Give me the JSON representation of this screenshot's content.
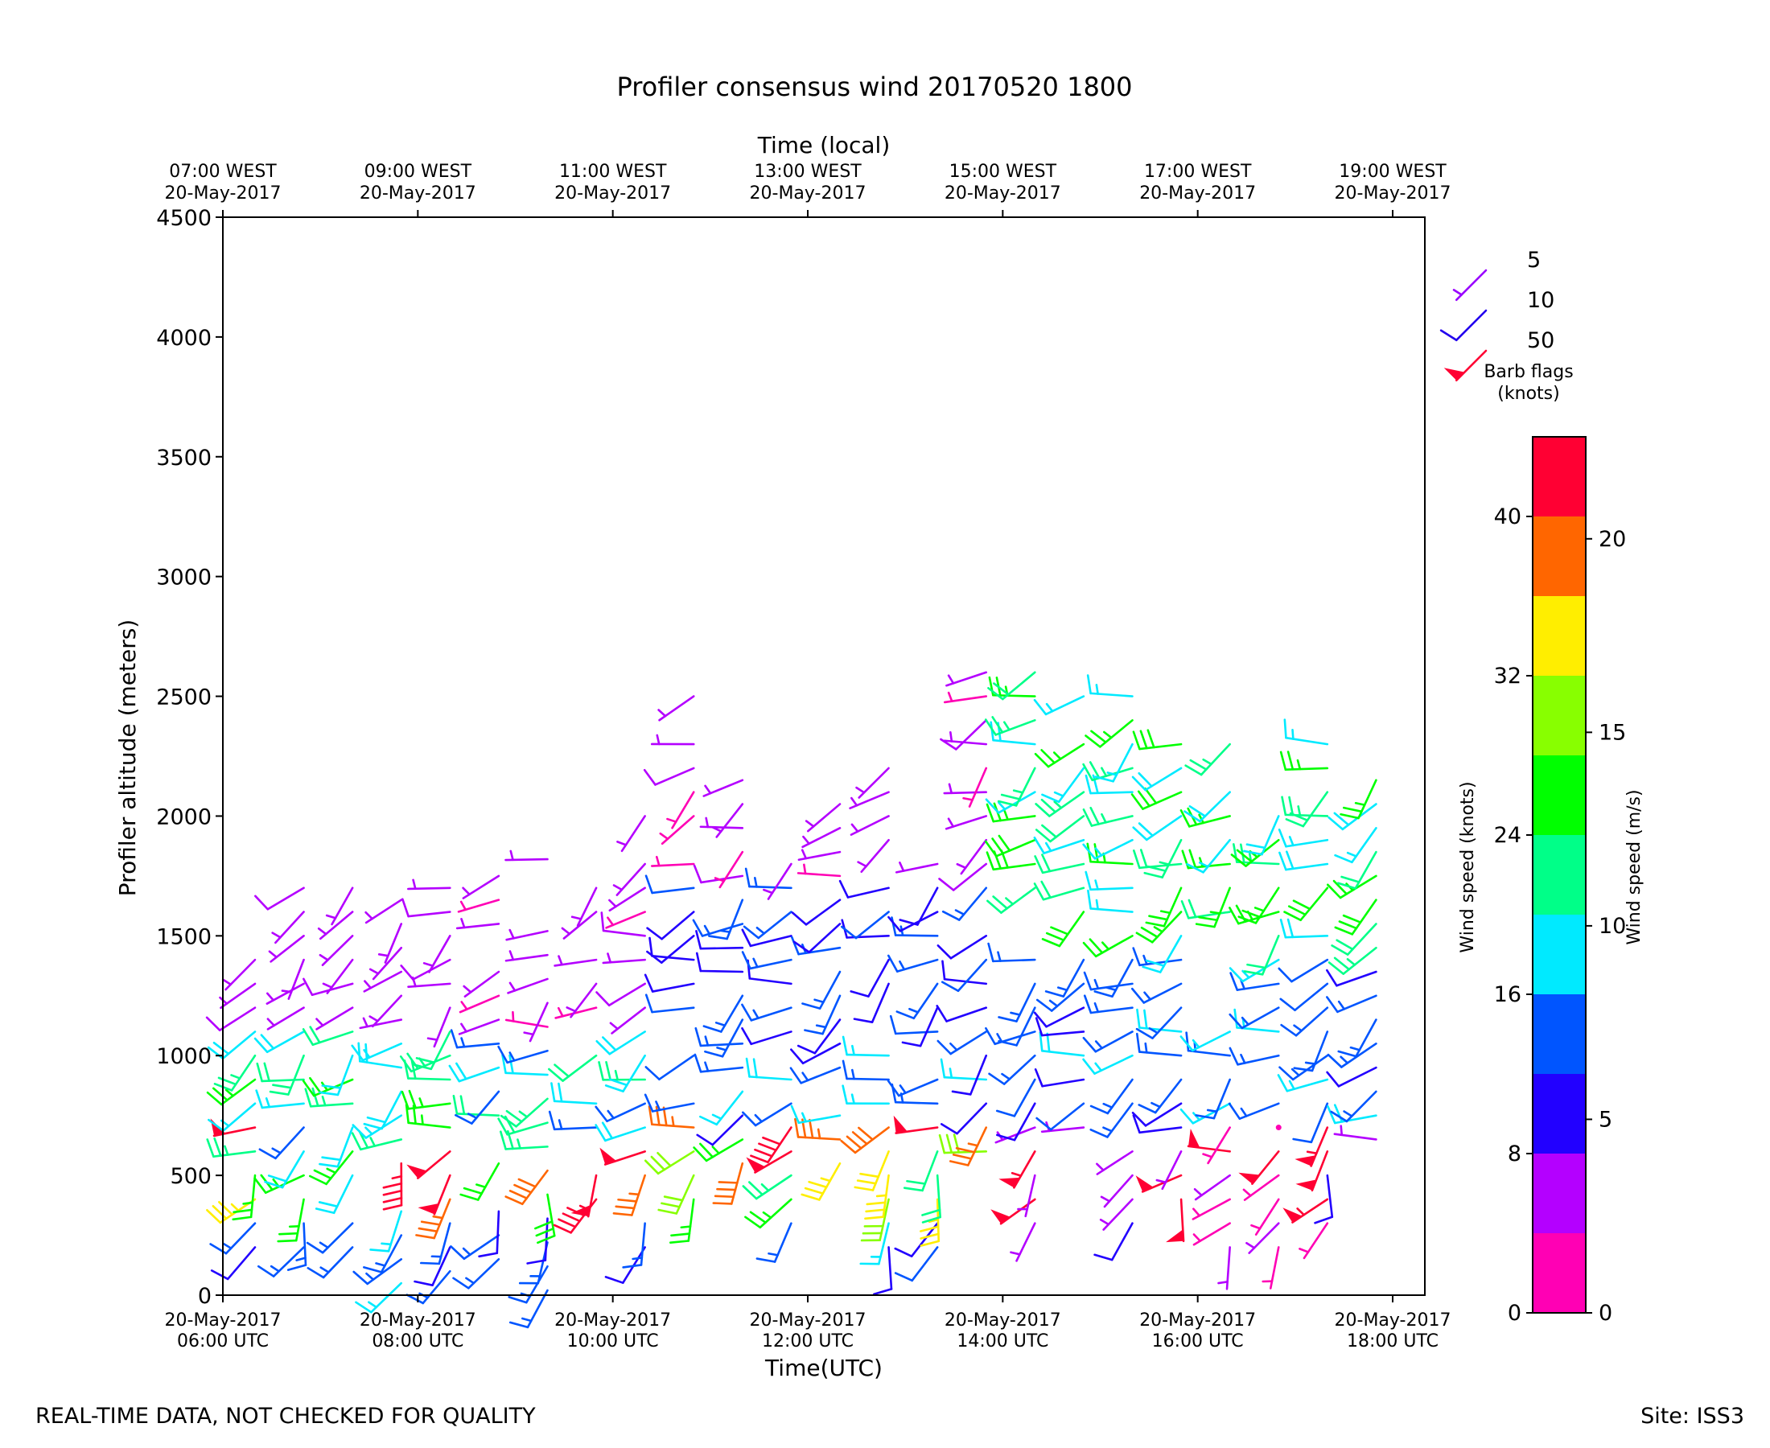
{
  "chart_data": {
    "type": "wind-barb",
    "title": "Profiler consensus wind 20170520 1800",
    "xlabel": "Time(UTC)",
    "xlabel_top": "Time (local)",
    "ylabel": "Profiler altitude (meters)",
    "ylim": [
      0,
      4500
    ],
    "yticks": [
      0,
      500,
      1000,
      1500,
      2000,
      2500,
      3000,
      3500,
      4000,
      4500
    ],
    "xlim_hours_utc": [
      6,
      18.33
    ],
    "xticks_bottom": [
      {
        "hour": 6,
        "line1": "20-May-2017",
        "line2": "06:00 UTC"
      },
      {
        "hour": 8,
        "line1": "20-May-2017",
        "line2": "08:00 UTC"
      },
      {
        "hour": 10,
        "line1": "20-May-2017",
        "line2": "10:00 UTC"
      },
      {
        "hour": 12,
        "line1": "20-May-2017",
        "line2": "12:00 UTC"
      },
      {
        "hour": 14,
        "line1": "20-May-2017",
        "line2": "14:00 UTC"
      },
      {
        "hour": 16,
        "line1": "20-May-2017",
        "line2": "16:00 UTC"
      },
      {
        "hour": 18,
        "line1": "20-May-2017",
        "line2": "18:00 UTC"
      }
    ],
    "xticks_top": [
      {
        "hour": 6,
        "line1": "07:00 WEST",
        "line2": "20-May-2017"
      },
      {
        "hour": 8,
        "line1": "09:00 WEST",
        "line2": "20-May-2017"
      },
      {
        "hour": 10,
        "line1": "11:00 WEST",
        "line2": "20-May-2017"
      },
      {
        "hour": 12,
        "line1": "13:00 WEST",
        "line2": "20-May-2017"
      },
      {
        "hour": 14,
        "line1": "15:00 WEST",
        "line2": "20-May-2017"
      },
      {
        "hour": 16,
        "line1": "17:00 WEST",
        "line2": "20-May-2017"
      },
      {
        "hour": 18,
        "line1": "19:00 WEST",
        "line2": "20-May-2017"
      }
    ],
    "barb_legend": {
      "title_line1": "Barb flags",
      "title_line2": "(knots)",
      "entries": [
        {
          "label": "5",
          "speed": 5,
          "color": "#9900ff"
        },
        {
          "label": "10",
          "speed": 10,
          "color": "#2200ee"
        },
        {
          "label": "50",
          "speed": 50,
          "color": "#ff0033"
        }
      ]
    },
    "colorbar": {
      "label_knots": "Wind speed (knots)",
      "label_ms": "Wind speed (m/s)",
      "bounds_knots": [
        0,
        4,
        8,
        12,
        16,
        20,
        24,
        28,
        32,
        36,
        40,
        44
      ],
      "colors": [
        "#ff00b4",
        "#b400ff",
        "#2200ff",
        "#0055ff",
        "#00eaff",
        "#00ff88",
        "#00ff00",
        "#88ff00",
        "#ffee00",
        "#ff6600",
        "#ff0033"
      ],
      "ticks_knots": [
        0,
        8,
        16,
        24,
        32,
        40
      ],
      "ticks_ms": [
        0,
        5,
        10,
        15,
        20
      ]
    },
    "columns": [
      {
        "hour": 6.33,
        "top": 1450,
        "bot": 200
      },
      {
        "hour": 6.83,
        "top": 1750,
        "bot": 200
      },
      {
        "hour": 7.33,
        "top": 1750,
        "bot": 200
      },
      {
        "hour": 7.83,
        "top": 1650,
        "bot": 50
      },
      {
        "hour": 8.33,
        "top": 1750,
        "bot": 100
      },
      {
        "hour": 8.83,
        "top": 1750,
        "bot": 150
      },
      {
        "hour": 9.33,
        "top": 1850,
        "bot": 20
      },
      {
        "hour": 9.83,
        "top": 1850,
        "bot": 400
      },
      {
        "hour": 10.33,
        "top": 2050,
        "bot": 200
      },
      {
        "hour": 10.83,
        "top": 2550,
        "bot": 300
      },
      {
        "hour": 11.33,
        "top": 2150,
        "bot": 550
      },
      {
        "hour": 11.83,
        "top": 1800,
        "bot": 300
      },
      {
        "hour": 12.33,
        "top": 2050,
        "bot": 550
      },
      {
        "hour": 12.83,
        "top": 2250,
        "bot": 200
      },
      {
        "hour": 13.33,
        "top": 1850,
        "bot": 200
      },
      {
        "hour": 13.83,
        "top": 2650,
        "bot": 200
      },
      {
        "hour": 14.33,
        "top": 2650,
        "bot": 300
      },
      {
        "hour": 14.83,
        "top": 2550,
        "bot": 700
      },
      {
        "hour": 15.33,
        "top": 2550,
        "bot": 300
      },
      {
        "hour": 15.83,
        "top": 2350,
        "bot": 400
      },
      {
        "hour": 16.33,
        "top": 2350,
        "bot": 200
      },
      {
        "hour": 16.83,
        "top": 2250,
        "bot": 200
      },
      {
        "hour": 17.33,
        "top": 2350,
        "bot": 300
      },
      {
        "hour": 17.83,
        "top": 2150,
        "bot": 650
      }
    ]
  },
  "footer": {
    "left": "REAL-TIME DATA, NOT CHECKED FOR QUALITY",
    "right": "Site: ISS3"
  }
}
